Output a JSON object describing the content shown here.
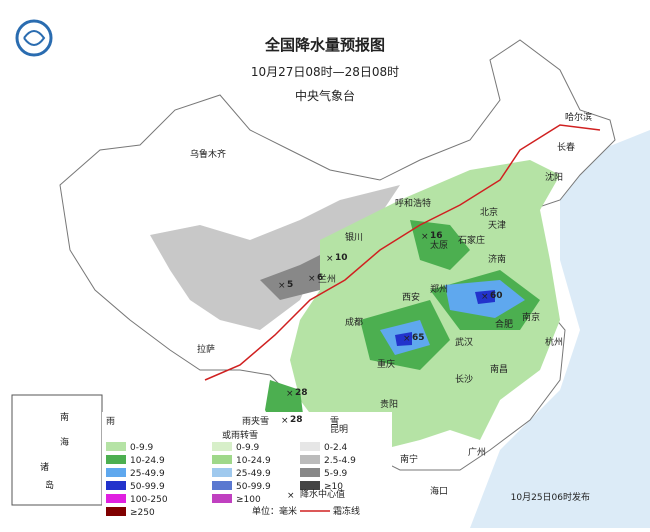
{
  "header": {
    "title": "全国降水量预报图",
    "period": "10月27日08时—28日08时",
    "issuer": "中央气象台"
  },
  "cities": [
    "乌鲁木齐",
    "拉萨",
    "兰州",
    "银川",
    "呼和浩特",
    "太原",
    "石家庄",
    "北京",
    "天津",
    "济南",
    "郑州",
    "西安",
    "成都",
    "重庆",
    "武汉",
    "长沙",
    "贵阳",
    "昆明",
    "南宁",
    "广州",
    "海口",
    "南昌",
    "合肥",
    "南京",
    "杭州",
    "沈阳",
    "长春",
    "哈尔滨"
  ],
  "centers": [
    5,
    6,
    10,
    16,
    65,
    60,
    28,
    28
  ],
  "legend": {
    "rain": {
      "title": "雨",
      "items": [
        "0-9.9",
        "10-24.9",
        "25-49.9",
        "50-99.9",
        "100-250",
        "≥250"
      ]
    },
    "sleet": {
      "title": "雨夹雪",
      "title2": "或雨转雪",
      "items": [
        "0-9.9",
        "10-24.9",
        "25-49.9",
        "50-99.9",
        "≥100"
      ]
    },
    "snow": {
      "title": "雪",
      "items": [
        "0-2.4",
        "2.5-4.9",
        "5-9.9",
        "≥10"
      ]
    },
    "center_label": "降水中心值",
    "frost_label": "霜冻线",
    "unit": "单位：毫米"
  },
  "issued": "10月25日06时发布",
  "inset": [
    "南",
    "海",
    "诸",
    "岛"
  ]
}
